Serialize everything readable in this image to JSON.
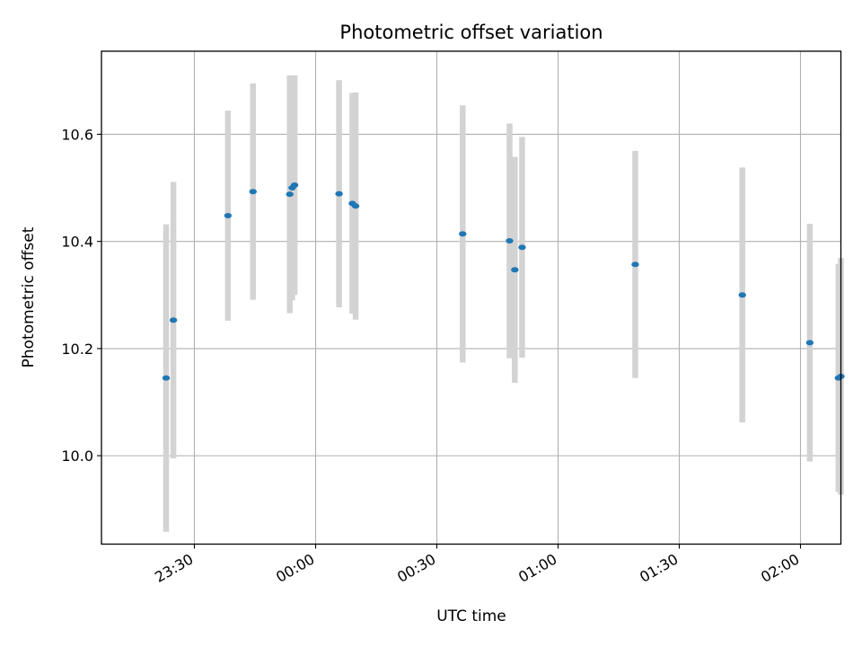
{
  "chart_data": {
    "type": "scatter",
    "title": "Photometric offset variation",
    "xlabel": "UTC time",
    "ylabel": "Photometric offset",
    "x_unit": "minutes relative to 00:00 UTC",
    "xlim": [
      -53,
      130
    ],
    "ylim": [
      9.835,
      10.755
    ],
    "xticks": [
      {
        "value": -30,
        "label": "23:30"
      },
      {
        "value": 0,
        "label": "00:00"
      },
      {
        "value": 30,
        "label": "00:30"
      },
      {
        "value": 60,
        "label": "01:00"
      },
      {
        "value": 90,
        "label": "01:30"
      },
      {
        "value": 120,
        "label": "02:00"
      }
    ],
    "yticks": [
      {
        "value": 10.0,
        "label": "10.0"
      },
      {
        "value": 10.2,
        "label": "10.2"
      },
      {
        "value": 10.4,
        "label": "10.4"
      },
      {
        "value": 10.6,
        "label": "10.6"
      }
    ],
    "grid": true,
    "colors": {
      "point": "#1f77b4",
      "errorbar": "#d3d3d3",
      "grid": "#b0b0b0"
    },
    "points": [
      {
        "x": -37.0,
        "y": 10.145,
        "err": 0.287
      },
      {
        "x": -35.2,
        "y": 10.253,
        "err": 0.258
      },
      {
        "x": -21.7,
        "y": 10.448,
        "err": 0.196
      },
      {
        "x": -15.5,
        "y": 10.493,
        "err": 0.202
      },
      {
        "x": -6.4,
        "y": 10.488,
        "err": 0.222
      },
      {
        "x": -5.8,
        "y": 10.5,
        "err": 0.21
      },
      {
        "x": -5.2,
        "y": 10.505,
        "err": 0.205
      },
      {
        "x": 5.8,
        "y": 10.489,
        "err": 0.212
      },
      {
        "x": 9.1,
        "y": 10.471,
        "err": 0.206
      },
      {
        "x": 9.9,
        "y": 10.466,
        "err": 0.212
      },
      {
        "x": 36.4,
        "y": 10.414,
        "err": 0.24
      },
      {
        "x": 48.0,
        "y": 10.401,
        "err": 0.219
      },
      {
        "x": 49.3,
        "y": 10.347,
        "err": 0.211
      },
      {
        "x": 51.1,
        "y": 10.389,
        "err": 0.206
      },
      {
        "x": 79.1,
        "y": 10.357,
        "err": 0.212
      },
      {
        "x": 105.6,
        "y": 10.3,
        "err": 0.238
      },
      {
        "x": 122.3,
        "y": 10.211,
        "err": 0.222
      },
      {
        "x": 129.4,
        "y": 10.145,
        "err": 0.213
      },
      {
        "x": 130.0,
        "y": 10.148,
        "err": 0.221
      }
    ]
  }
}
